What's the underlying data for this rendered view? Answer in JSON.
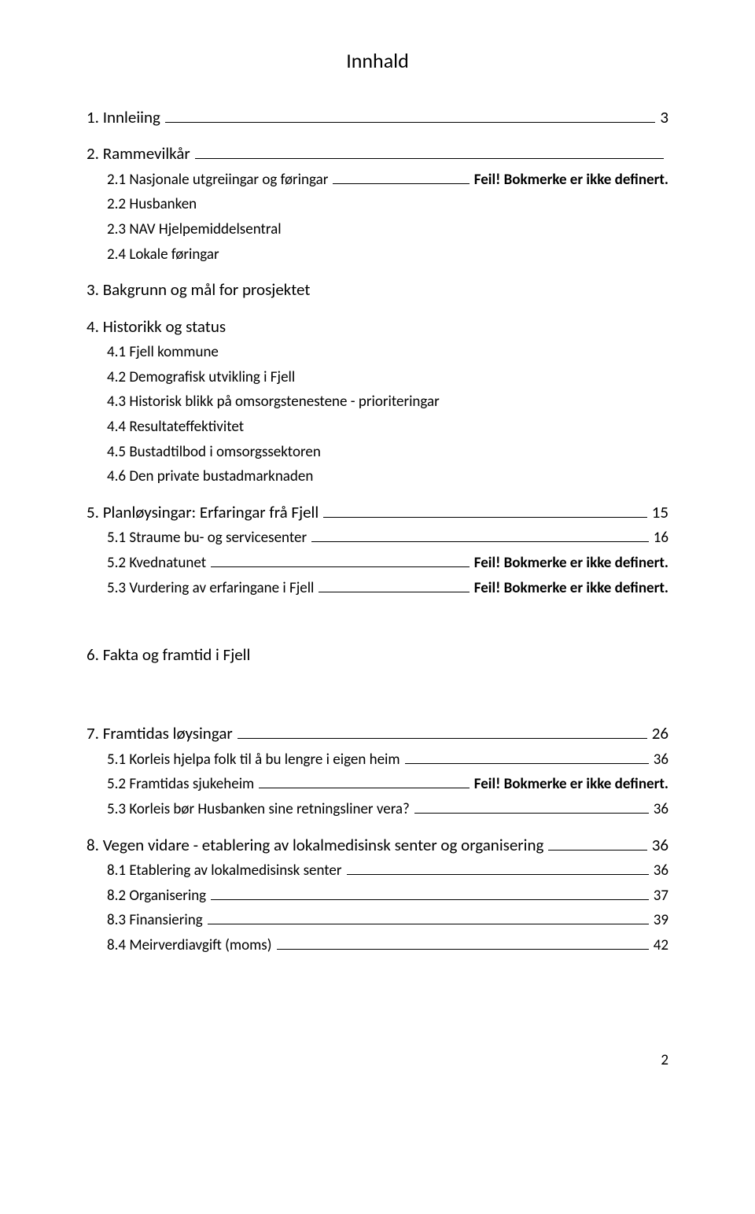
{
  "colors": {
    "background": "#ffffff",
    "text": "#000000",
    "leader": "#000000"
  },
  "typography": {
    "body_family": "Calibri",
    "title_fontsize_pt": 20,
    "h1_fontsize_pt": 16,
    "h2_fontsize_pt": 14,
    "page_num_fontsize_pt": 14
  },
  "page": {
    "title": "Innhald",
    "number": "2"
  },
  "error_text": "Feil! Bokmerke er ikke definert.",
  "toc": {
    "s1": {
      "label": "1. Innleiing",
      "page": "3"
    },
    "s2": {
      "label": "2. Rammevilkår"
    },
    "s2_1": {
      "label": "2.1 Nasjonale utgreiingar og føringar"
    },
    "s2_2": {
      "label": "2.2 Husbanken"
    },
    "s2_3": {
      "label": "2.3 NAV Hjelpemiddelsentral"
    },
    "s2_4": {
      "label": "2.4 Lokale føringar"
    },
    "s3": {
      "label": "3. Bakgrunn og mål for prosjektet"
    },
    "s4": {
      "label": "4. Historikk og status"
    },
    "s4_1": {
      "label": "4.1 Fjell kommune"
    },
    "s4_2": {
      "label": "4.2 Demografisk utvikling i Fjell"
    },
    "s4_3": {
      "label": "4.3 Historisk blikk på omsorgstenestene - prioriteringar"
    },
    "s4_4": {
      "label": "4.4 Resultateffektivitet"
    },
    "s4_5": {
      "label": "4.5 Bustadtilbod i omsorgssektoren"
    },
    "s4_6": {
      "label": "4.6 Den private bustadmarknaden"
    },
    "s5": {
      "label": "5. Planløysingar: Erfaringar frå Fjell",
      "page": "15"
    },
    "s5_1": {
      "label": "5.1 Straume bu- og servicesenter",
      "page": "16"
    },
    "s5_2": {
      "label": "5.2 Kvednatunet"
    },
    "s5_3": {
      "label": "5.3 Vurdering av erfaringane i Fjell"
    },
    "s6": {
      "label": "6. Fakta og framtid i Fjell"
    },
    "s7": {
      "label": "7. Framtidas løysingar",
      "page": "26"
    },
    "s5_1b": {
      "label": "5.1 Korleis hjelpa folk til å bu lengre i eigen heim",
      "page": "36"
    },
    "s5_2b": {
      "label": "5.2 Framtidas sjukeheim"
    },
    "s5_3b": {
      "label": "5.3 Korleis bør Husbanken sine retningsliner vera?",
      "page": "36"
    },
    "s8": {
      "label": "8. Vegen vidare - etablering av lokalmedisinsk senter og organisering",
      "page": "36"
    },
    "s8_1": {
      "label": "8.1 Etablering av lokalmedisinsk senter",
      "page": "36"
    },
    "s8_2": {
      "label": "8.2 Organisering",
      "page": "37"
    },
    "s8_3": {
      "label": "8.3 Finansiering",
      "page": "39"
    },
    "s8_4": {
      "label": "8.4 Meirverdiavgift (moms)",
      "page": "42"
    }
  }
}
